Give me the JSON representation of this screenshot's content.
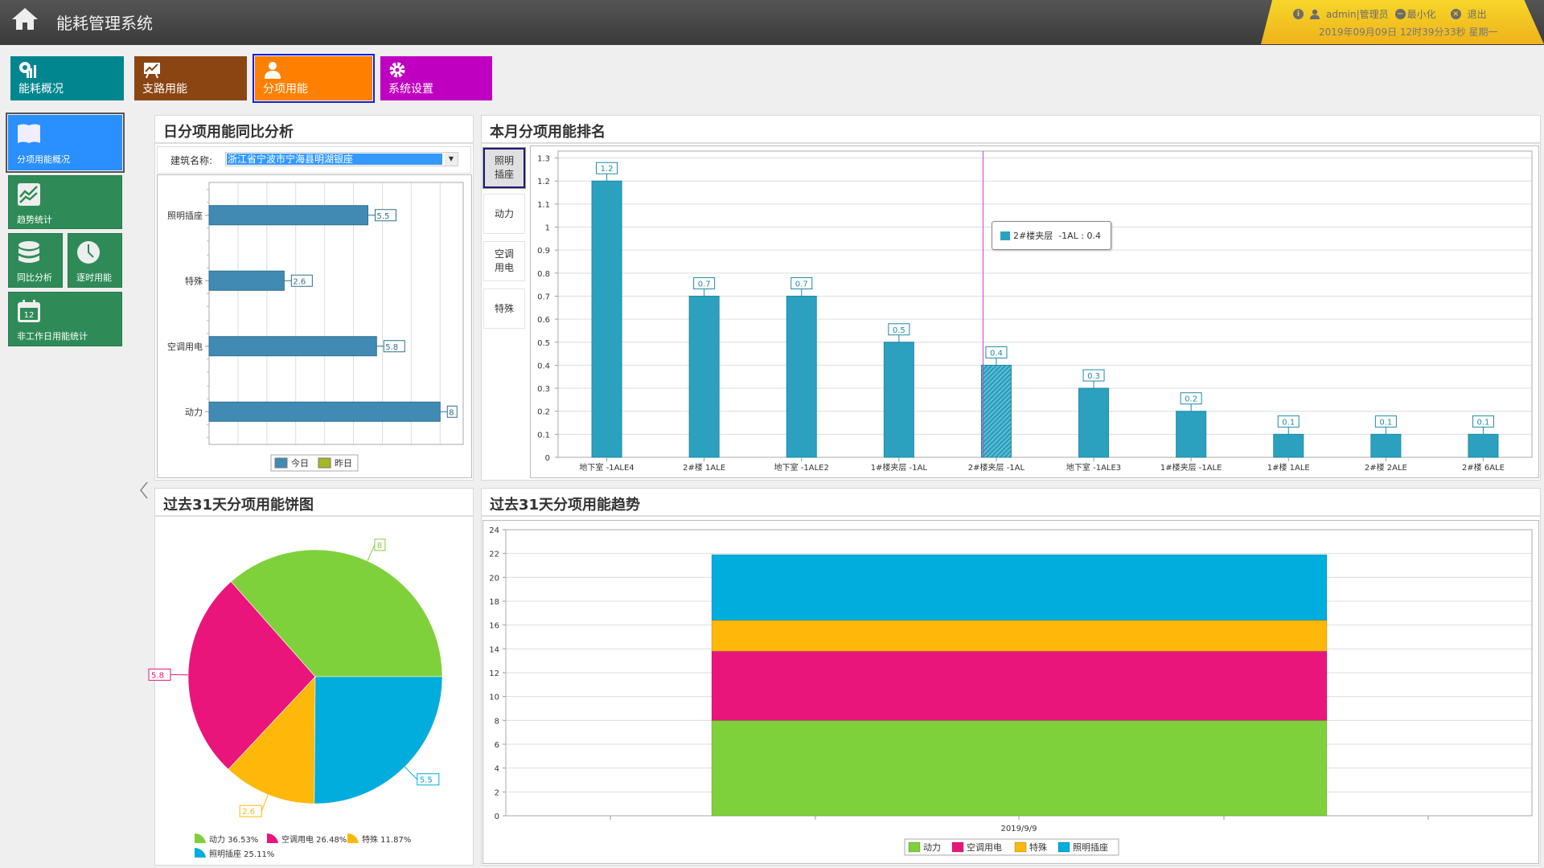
{
  "header": {
    "title": "能耗管理系统",
    "user": "admin|管理员",
    "minimize": "最小化",
    "logout": "退出",
    "datetime": "2019年09月09日 12时39分33秒 星期一"
  },
  "nav": [
    {
      "label": "能耗概况",
      "color": "#00868f",
      "icon": "chart-pie-icon"
    },
    {
      "label": "支路用能",
      "color": "#8b4513",
      "icon": "presentation-chart-icon"
    },
    {
      "label": "分项用能",
      "color": "#ff8000",
      "icon": "user-icon",
      "selected": true
    },
    {
      "label": "系统设置",
      "color": "#c000c0",
      "icon": "gear-icon"
    }
  ],
  "sidebar": [
    {
      "label": "分项用能概况",
      "icon": "map-icon",
      "selected": true
    },
    {
      "label": "趋势统计",
      "icon": "trend-icon"
    },
    {
      "label": "同比分析",
      "icon": "database-icon"
    },
    {
      "label": "逐时用能",
      "icon": "clock-icon"
    },
    {
      "label": "非工作日用能统计",
      "icon": "calendar-icon",
      "calendar_day": "12"
    }
  ],
  "panels": {
    "daily": {
      "title": "日分项用能同比分析",
      "building_label": "建筑名称:",
      "building_value": "浙江省宁波市宁海县明湖银座"
    },
    "ranking": {
      "title": "本月分项用能排名",
      "tabs": [
        "照明插座",
        "动力",
        "空调用电",
        "特殊"
      ],
      "selected_tab": 0,
      "tooltip": "2#楼夹层  -1AL : 0.4"
    },
    "pie": {
      "title": "过去31天分项用能饼图"
    },
    "trend": {
      "title": "过去31天分项用能趋势"
    }
  },
  "chart_data": [
    {
      "type": "bar",
      "orientation": "horizontal",
      "categories": [
        "照明插座",
        "特殊",
        "空调用电",
        "动力"
      ],
      "series": [
        {
          "name": "今日",
          "color": "#418ab3",
          "values": [
            5.5,
            2.6,
            5.8,
            8
          ]
        },
        {
          "name": "昨日",
          "color": "#a5b723",
          "values": [
            null,
            null,
            null,
            null
          ]
        }
      ],
      "xlim": [
        0,
        8.8
      ],
      "grid": true,
      "legend": "bottom"
    },
    {
      "type": "bar",
      "categories": [
        "地下室  -1ALE4",
        "2#楼  1ALE",
        "地下室  -1ALE2",
        "1#楼夹层  -1AL",
        "2#楼夹层  -1AL",
        "地下室  -1ALE3",
        "1#楼夹层  -1ALE",
        "1#楼  1ALE",
        "2#楼  2ALE",
        "2#楼  6ALE"
      ],
      "values": [
        1.2,
        0.7,
        0.7,
        0.5,
        0.4,
        0.3,
        0.2,
        0.1,
        0.1,
        0.1
      ],
      "color": "#2ba1bf",
      "highlight_index": 4,
      "yticks": [
        "0",
        "0.1",
        "0.2",
        "0.3",
        "0.4",
        "0.5",
        "0.6",
        "0.7",
        "0.8",
        "0.9",
        "1",
        "1.1",
        "1.2",
        "1.3"
      ],
      "ylim": [
        0,
        1.33
      ],
      "grid": true
    },
    {
      "type": "pie",
      "slices": [
        {
          "name": "动力",
          "value": 8,
          "percent": "36.53%",
          "color": "#7fd13b"
        },
        {
          "name": "空调用电",
          "value": 5.8,
          "percent": "26.48%",
          "color": "#ea157a"
        },
        {
          "name": "特殊",
          "value": 2.6,
          "percent": "11.87%",
          "color": "#feb80a"
        },
        {
          "name": "照明插座",
          "value": 5.5,
          "percent": "25.11%",
          "color": "#00addc"
        }
      ],
      "legend": "bottom"
    },
    {
      "type": "bar",
      "stacked": true,
      "categories": [
        "2019/9/9"
      ],
      "series": [
        {
          "name": "动力",
          "color": "#7fd13b",
          "values": [
            8
          ]
        },
        {
          "name": "空调用电",
          "color": "#ea157a",
          "values": [
            5.8
          ]
        },
        {
          "name": "特殊",
          "color": "#feb80a",
          "values": [
            2.6
          ]
        },
        {
          "name": "照明插座",
          "color": "#00addc",
          "values": [
            5.5
          ]
        }
      ],
      "yticks": [
        "0",
        "2",
        "4",
        "6",
        "8",
        "10",
        "12",
        "14",
        "16",
        "18",
        "20",
        "22",
        "24"
      ],
      "ylim": [
        0,
        24
      ],
      "grid": true,
      "legend": "bottom"
    }
  ]
}
